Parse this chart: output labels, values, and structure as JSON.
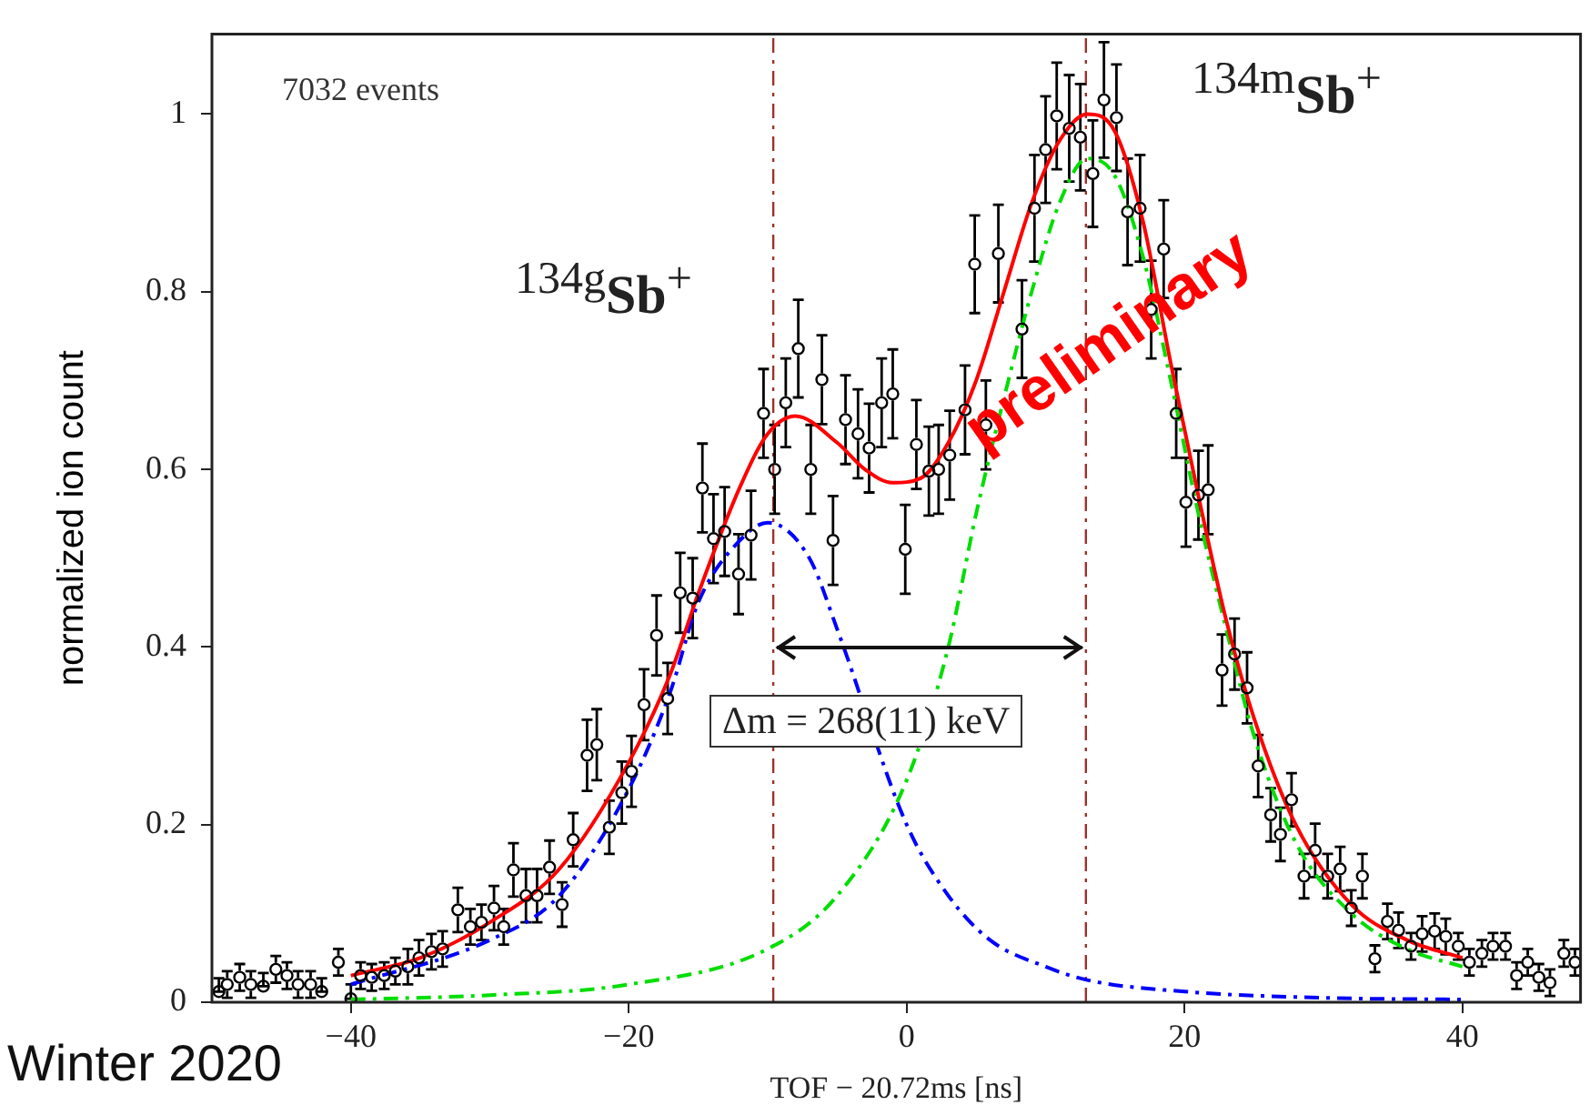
{
  "chart_data": {
    "type": "scatter",
    "xlabel": "TOF − 20.72ms [ns]",
    "ylabel": "normalized ion count",
    "xlim": [
      -50,
      48.5
    ],
    "ylim": [
      0,
      1.09
    ],
    "xticks": [
      {
        "value": -40,
        "label": "−40"
      },
      {
        "value": -20,
        "label": "−20"
      },
      0,
      20,
      40
    ],
    "yticks": [
      0,
      0.2,
      0.4,
      0.6,
      0.8,
      1
    ],
    "grid": false,
    "series": [
      {
        "color": "#000000",
        "marker": "circle",
        "x": [
          -49.5,
          -48.9,
          -48.0,
          -47.2,
          -46.3,
          -45.4,
          -44.6,
          -43.8,
          -42.9,
          -42.1,
          -40.9,
          -40.0,
          -39.3,
          -38.5,
          -37.6,
          -36.8,
          -35.9,
          -35.1,
          -34.2,
          -33.4,
          -32.3,
          -31.4,
          -30.6,
          -29.7,
          -29.0,
          -28.3,
          -27.4,
          -26.6,
          -25.7,
          -24.8,
          -24.0,
          -23.0,
          -22.3,
          -21.4,
          -20.5,
          -19.8,
          -18.9,
          -18.0,
          -17.2,
          -16.3,
          -15.4,
          -14.7,
          -13.9,
          -13.1,
          -12.1,
          -11.2,
          -10.3,
          -9.5,
          -8.7,
          -7.8,
          -6.9,
          -6.1,
          -5.3,
          -4.4,
          -3.5,
          -2.7,
          -1.8,
          -1.0,
          -0.1,
          0.7,
          1.6,
          2.3,
          3.1,
          4.2,
          4.9,
          5.7,
          6.6,
          8.3,
          9.2,
          10.0,
          10.8,
          11.7,
          12.5,
          13.4,
          14.2,
          15.1,
          15.9,
          16.8,
          17.6,
          18.5,
          19.4,
          20.1,
          21.0,
          21.7,
          22.7,
          23.6,
          24.5,
          25.3,
          26.2,
          26.9,
          27.7,
          28.6,
          29.4,
          30.3,
          31.2,
          32.0,
          32.8,
          33.7,
          34.6,
          35.4,
          36.3,
          37.1,
          38.0,
          38.8,
          39.7,
          40.5,
          41.4,
          42.2,
          43.1,
          43.9,
          44.7,
          45.5,
          46.3,
          47.3,
          48.1
        ],
        "values": [
          0.012,
          0.02,
          0.028,
          0.02,
          0.018,
          0.037,
          0.03,
          0.02,
          0.02,
          0.012,
          0.045,
          0.004,
          0.03,
          0.028,
          0.03,
          0.035,
          0.04,
          0.05,
          0.057,
          0.06,
          0.104,
          0.085,
          0.09,
          0.106,
          0.085,
          0.149,
          0.12,
          0.12,
          0.152,
          0.11,
          0.183,
          0.278,
          0.29,
          0.197,
          0.236,
          0.26,
          0.335,
          0.413,
          0.342,
          0.461,
          0.455,
          0.579,
          0.522,
          0.53,
          0.482,
          0.526,
          0.663,
          0.6,
          0.675,
          0.736,
          0.6,
          0.701,
          0.52,
          0.656,
          0.64,
          0.624,
          0.675,
          0.685,
          0.51,
          0.628,
          0.598,
          0.6,
          0.616,
          0.667,
          0.831,
          0.65,
          0.843,
          0.758,
          0.894,
          0.96,
          0.998,
          0.984,
          0.974,
          0.933,
          1.016,
          0.996,
          0.89,
          0.894,
          0.78,
          0.848,
          0.663,
          0.563,
          0.571,
          0.577,
          0.374,
          0.392,
          0.354,
          0.266,
          0.211,
          0.189,
          0.228,
          0.142,
          0.171,
          0.142,
          0.15,
          0.106,
          0.142,
          0.049,
          0.091,
          0.081,
          0.063,
          0.077,
          0.08,
          0.074,
          0.063,
          0.045,
          0.055,
          0.063,
          0.063,
          0.03,
          0.045,
          0.028,
          0.022,
          0.055,
          0.045
        ],
        "errors": [
          [
            0.012,
            0.027
          ],
          0.015,
          0.015,
          0.015,
          [
            0.018,
            0.033
          ],
          0.015,
          0.015,
          0.015,
          0.015,
          [
            0.012,
            0.027
          ],
          0.015,
          [
            0.004,
            0.02
          ],
          0.015,
          0.015,
          0.015,
          0.015,
          0.02,
          0.02,
          0.02,
          0.02,
          0.025,
          0.02,
          0.02,
          0.025,
          0.02,
          0.03,
          0.03,
          0.03,
          0.03,
          0.025,
          0.03,
          0.04,
          0.04,
          0.03,
          0.035,
          0.04,
          0.04,
          0.045,
          0.04,
          0.045,
          0.045,
          0.05,
          0.05,
          0.05,
          0.045,
          0.05,
          0.05,
          0.05,
          0.05,
          0.055,
          0.05,
          0.05,
          0.05,
          0.05,
          0.05,
          0.05,
          0.05,
          0.05,
          0.05,
          0.05,
          0.05,
          0.05,
          0.05,
          0.05,
          0.055,
          0.05,
          0.055,
          0.055,
          0.06,
          0.06,
          0.06,
          0.06,
          0.06,
          0.06,
          0.065,
          0.06,
          0.06,
          0.06,
          0.055,
          0.055,
          0.05,
          0.05,
          0.05,
          0.05,
          0.04,
          0.04,
          0.04,
          0.035,
          0.03,
          0.03,
          0.03,
          0.025,
          0.03,
          0.025,
          0.025,
          0.02,
          0.025,
          0.015,
          0.02,
          0.02,
          0.015,
          0.02,
          0.02,
          0.02,
          0.015,
          0.015,
          0.015,
          0.015,
          0.015,
          0.015,
          0.015,
          0.015,
          0.015,
          0.015,
          0.015
        ]
      },
      {
        "type": "line",
        "color": "#ff0000",
        "line_style": "solid",
        "marker": "none",
        "x": [
          -40,
          -35,
          -30,
          -25,
          -20,
          -17,
          -15,
          -12,
          -10,
          -8,
          -5,
          -3,
          -1,
          1,
          3,
          5,
          7,
          9,
          11,
          13,
          15,
          17,
          19,
          21,
          23,
          25,
          28,
          32,
          36,
          40
        ],
        "values": [
          0.03,
          0.05,
          0.09,
          0.15,
          0.27,
          0.37,
          0.46,
          0.58,
          0.64,
          0.66,
          0.63,
          0.6,
          0.585,
          0.59,
          0.63,
          0.7,
          0.8,
          0.9,
          0.97,
          1.0,
          0.98,
          0.88,
          0.72,
          0.57,
          0.43,
          0.32,
          0.2,
          0.11,
          0.07,
          0.05
        ]
      },
      {
        "type": "line",
        "color": "#0000ff",
        "line_style": "dashed",
        "marker": "none",
        "x": [
          -40,
          -30,
          -25,
          -20,
          -17,
          -15,
          -12,
          -10,
          -7,
          -5,
          0,
          3,
          6,
          10,
          13,
          20,
          30,
          40
        ],
        "values": [
          0.02,
          0.07,
          0.12,
          0.24,
          0.35,
          0.45,
          0.52,
          0.54,
          0.5,
          0.42,
          0.2,
          0.12,
          0.07,
          0.04,
          0.025,
          0.012,
          0.005,
          0.003
        ]
      },
      {
        "type": "line",
        "color": "#00dd00",
        "line_style": "dashed",
        "marker": "none",
        "x": [
          -40,
          -30,
          -20,
          -10,
          -5,
          0,
          3,
          5,
          7,
          9,
          11,
          13,
          15,
          17,
          19,
          21,
          23,
          25,
          28,
          32,
          36,
          40
        ],
        "values": [
          0.003,
          0.008,
          0.02,
          0.06,
          0.12,
          0.25,
          0.4,
          0.55,
          0.68,
          0.8,
          0.9,
          0.95,
          0.93,
          0.84,
          0.7,
          0.55,
          0.42,
          0.3,
          0.18,
          0.1,
          0.06,
          0.04
        ]
      }
    ],
    "ref_lines": [
      {
        "axis": "x",
        "value": -9.6,
        "color": "#a0302a",
        "line_style": "dashed"
      },
      {
        "axis": "x",
        "value": 12.9,
        "color": "#a0302a",
        "line_style": "dashed"
      }
    ],
    "annotations": [
      "7032 events",
      "$^{134g}$Sb$^{+}$",
      "$^{134m}$Sb$^{+}$",
      {
        "text": "Δm = 268(11) keV",
        "x": -9.6,
        "y": 0.4
      },
      "preliminary",
      "Winter 2020"
    ]
  }
}
